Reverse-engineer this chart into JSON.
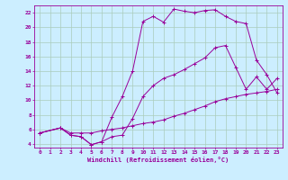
{
  "xlabel": "Windchill (Refroidissement éolien,°C)",
  "bg_color": "#cceeff",
  "line_color": "#990099",
  "grid_color": "#aaccbb",
  "xlim": [
    -0.5,
    23.5
  ],
  "ylim": [
    3.5,
    23
  ],
  "yticks": [
    4,
    6,
    8,
    10,
    12,
    14,
    16,
    18,
    20,
    22
  ],
  "xticks": [
    0,
    1,
    2,
    3,
    4,
    5,
    6,
    7,
    8,
    9,
    10,
    11,
    12,
    13,
    14,
    15,
    16,
    17,
    18,
    19,
    20,
    21,
    22,
    23
  ],
  "line1_x": [
    0,
    2,
    3,
    4,
    5,
    6,
    7,
    8,
    9,
    10,
    11,
    12,
    13,
    14,
    15,
    16,
    17,
    18,
    19,
    20,
    21,
    22,
    23
  ],
  "line1_y": [
    5.5,
    6.2,
    5.2,
    5.0,
    3.9,
    4.3,
    7.7,
    10.5,
    14.0,
    20.8,
    21.5,
    20.7,
    22.5,
    22.2,
    22.0,
    22.3,
    22.4,
    21.5,
    20.8,
    20.5,
    15.5,
    13.5,
    11.0
  ],
  "line2_x": [
    0,
    2,
    3,
    4,
    5,
    6,
    7,
    8,
    9,
    10,
    11,
    12,
    13,
    14,
    15,
    16,
    17,
    18,
    19,
    20,
    21,
    22,
    23
  ],
  "line2_y": [
    5.5,
    6.2,
    5.2,
    5.0,
    3.9,
    4.3,
    5.0,
    5.2,
    7.5,
    10.5,
    12.0,
    13.0,
    13.5,
    14.2,
    15.0,
    15.8,
    17.2,
    17.5,
    14.5,
    11.5,
    13.2,
    11.5,
    13.0
  ],
  "line3_x": [
    0,
    2,
    3,
    4,
    5,
    6,
    7,
    8,
    9,
    10,
    11,
    12,
    13,
    14,
    15,
    16,
    17,
    18,
    19,
    20,
    21,
    22,
    23
  ],
  "line3_y": [
    5.5,
    6.2,
    5.5,
    5.5,
    5.5,
    5.8,
    6.0,
    6.2,
    6.5,
    6.8,
    7.0,
    7.3,
    7.8,
    8.2,
    8.7,
    9.2,
    9.8,
    10.2,
    10.5,
    10.8,
    11.0,
    11.2,
    11.5
  ]
}
